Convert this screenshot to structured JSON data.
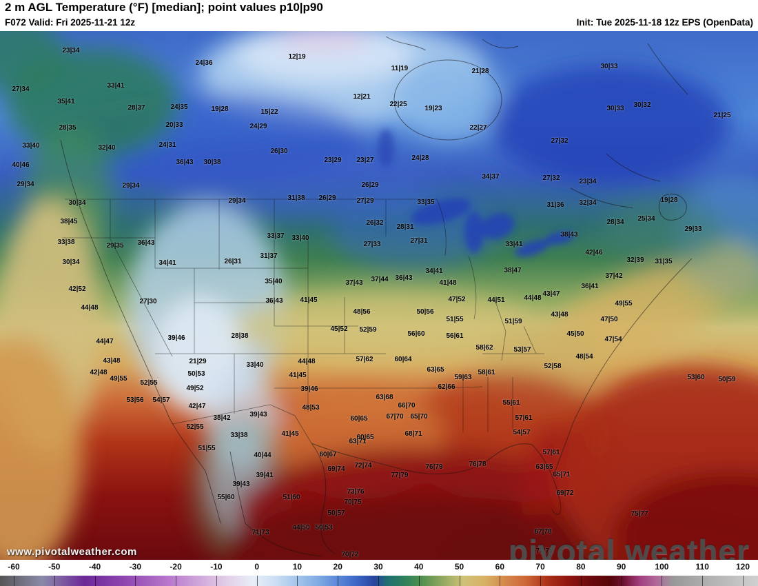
{
  "header": {
    "title": "2 m AGL Temperature (°F) [median]; point values p10|p90",
    "run_info": "F072 Valid: Fri 2025-11-21 12z",
    "init_info": "Init: Tue 2025-11-18 12z EPS (OpenData)"
  },
  "watermarks": {
    "url": "www.pivotalweather.com",
    "brand": "pivotal weather"
  },
  "colorbar": {
    "ticks": [
      -60,
      -50,
      -40,
      -30,
      -20,
      -10,
      0,
      10,
      20,
      30,
      40,
      50,
      60,
      70,
      80,
      90,
      100,
      110,
      120
    ],
    "stops": [
      [
        -60,
        "#555555"
      ],
      [
        -50,
        "#8a8aa8"
      ],
      [
        -40,
        "#6c2898"
      ],
      [
        -30,
        "#9048b0"
      ],
      [
        -20,
        "#b878cc"
      ],
      [
        -10,
        "#d8b8e0"
      ],
      [
        -5,
        "#e4d4ea"
      ],
      [
        0,
        "#e8eef8"
      ],
      [
        5,
        "#cfe0f4"
      ],
      [
        10,
        "#a8c8ec"
      ],
      [
        15,
        "#84aee4"
      ],
      [
        20,
        "#5c8ad8"
      ],
      [
        25,
        "#3a63c4"
      ],
      [
        29,
        "#27449c"
      ],
      [
        32,
        "#1f6f72"
      ],
      [
        36,
        "#2e7f5c"
      ],
      [
        40,
        "#4f8f4f"
      ],
      [
        45,
        "#8fa85f"
      ],
      [
        50,
        "#cfc178"
      ],
      [
        55,
        "#d8b266"
      ],
      [
        60,
        "#d4884a"
      ],
      [
        65,
        "#cc6636"
      ],
      [
        70,
        "#ab3018"
      ],
      [
        75,
        "#8f1410"
      ],
      [
        80,
        "#6c0a0e"
      ],
      [
        85,
        "#56060a"
      ],
      [
        88,
        "#6e1030"
      ],
      [
        92,
        "#a04080"
      ],
      [
        96,
        "#b0699a"
      ],
      [
        100,
        "#999999"
      ],
      [
        110,
        "#b5b5b5"
      ],
      [
        120,
        "#d0d0d0"
      ]
    ]
  },
  "chart_data": {
    "type": "heatmap",
    "title": "2 m AGL Temperature (°F) [median]; point values p10|p90",
    "units": "°F",
    "value_range": [
      -60,
      120
    ],
    "points_format": "[\"p10|p90\", x_px, y_px]",
    "points": [
      [
        "23|34",
        103,
        74
      ],
      [
        "12|19",
        431,
        83
      ],
      [
        "24|36",
        296,
        92
      ],
      [
        "30|33",
        884,
        97
      ],
      [
        "11|19",
        580,
        100
      ],
      [
        "21|28",
        697,
        104
      ],
      [
        "33|41",
        168,
        125
      ],
      [
        "27|34",
        30,
        130
      ],
      [
        "12|21",
        525,
        141
      ],
      [
        "35|41",
        96,
        148
      ],
      [
        "22|25",
        578,
        152
      ],
      [
        "30|32",
        932,
        153
      ],
      [
        "28|37",
        198,
        157
      ],
      [
        "24|35",
        260,
        156
      ],
      [
        "30|33",
        893,
        158
      ],
      [
        "19|28",
        319,
        159
      ],
      [
        "19|23",
        629,
        158
      ],
      [
        "15|22",
        391,
        163
      ],
      [
        "21|25",
        1048,
        168
      ],
      [
        "20|33",
        253,
        182
      ],
      [
        "24|29",
        375,
        184
      ],
      [
        "28|35",
        98,
        186
      ],
      [
        "22|27",
        694,
        186
      ],
      [
        "27|32",
        812,
        205
      ],
      [
        "24|31",
        243,
        211
      ],
      [
        "33|40",
        45,
        212
      ],
      [
        "32|40",
        155,
        215
      ],
      [
        "26|30",
        405,
        220
      ],
      [
        "24|28",
        610,
        230
      ],
      [
        "23|29",
        483,
        233
      ],
      [
        "23|27",
        530,
        233
      ],
      [
        "36|43",
        268,
        236
      ],
      [
        "30|38",
        308,
        236
      ],
      [
        "40|46",
        30,
        240
      ],
      [
        "34|37",
        712,
        257
      ],
      [
        "27|32",
        800,
        259
      ],
      [
        "23|34",
        853,
        264
      ],
      [
        "29|34",
        37,
        268
      ],
      [
        "29|34",
        190,
        270
      ],
      [
        "26|29",
        537,
        269
      ],
      [
        "26|29",
        475,
        288
      ],
      [
        "31|38",
        430,
        288
      ],
      [
        "27|29",
        530,
        292
      ],
      [
        "19|28",
        971,
        291
      ],
      [
        "29|34",
        344,
        292
      ],
      [
        "33|35",
        618,
        294
      ],
      [
        "30|34",
        112,
        295
      ],
      [
        "31|36",
        806,
        298
      ],
      [
        "32|34",
        853,
        295
      ],
      [
        "38|45",
        100,
        322
      ],
      [
        "26|32",
        544,
        324
      ],
      [
        "28|34",
        893,
        323
      ],
      [
        "25|34",
        938,
        318
      ],
      [
        "28|31",
        588,
        330
      ],
      [
        "29|33",
        1006,
        333
      ],
      [
        "33|38",
        96,
        352
      ],
      [
        "29|35",
        167,
        357
      ],
      [
        "36|43",
        212,
        353
      ],
      [
        "33|37",
        400,
        343
      ],
      [
        "33|40",
        436,
        346
      ],
      [
        "27|31",
        608,
        350
      ],
      [
        "27|33",
        540,
        355
      ],
      [
        "33|41",
        746,
        355
      ],
      [
        "38|43",
        826,
        341
      ],
      [
        "31|37",
        390,
        372
      ],
      [
        "26|31",
        338,
        380
      ],
      [
        "30|34",
        103,
        381
      ],
      [
        "34|41",
        243,
        382
      ],
      [
        "42|46",
        862,
        367
      ],
      [
        "32|39",
        922,
        378
      ],
      [
        "31|35",
        963,
        380
      ],
      [
        "34|41",
        630,
        394
      ],
      [
        "38|47",
        744,
        393
      ],
      [
        "37|42",
        891,
        401
      ],
      [
        "36|43",
        586,
        404
      ],
      [
        "37|44",
        551,
        406
      ],
      [
        "35|40",
        397,
        409
      ],
      [
        "37|43",
        514,
        411
      ],
      [
        "41|48",
        650,
        411
      ],
      [
        "36|41",
        856,
        416
      ],
      [
        "42|52",
        112,
        420
      ],
      [
        "43|47",
        800,
        427
      ],
      [
        "41|45",
        448,
        436
      ],
      [
        "36|43",
        398,
        437
      ],
      [
        "47|52",
        663,
        435
      ],
      [
        "44|51",
        720,
        436
      ],
      [
        "44|48",
        773,
        433
      ],
      [
        "27|30",
        215,
        438
      ],
      [
        "49|55",
        905,
        441
      ],
      [
        "44|48",
        130,
        447
      ],
      [
        "48|56",
        525,
        453
      ],
      [
        "50|56",
        617,
        453
      ],
      [
        "43|48",
        812,
        457
      ],
      [
        "51|55",
        660,
        464
      ],
      [
        "47|50",
        884,
        464
      ],
      [
        "51|59",
        745,
        467
      ],
      [
        "45|52",
        492,
        478
      ],
      [
        "52|59",
        534,
        479
      ],
      [
        "56|60",
        604,
        485
      ],
      [
        "56|61",
        660,
        488
      ],
      [
        "45|50",
        835,
        485
      ],
      [
        "39|46",
        256,
        491
      ],
      [
        "28|38",
        348,
        488
      ],
      [
        "44|47",
        152,
        496
      ],
      [
        "47|54",
        890,
        493
      ],
      [
        "58|62",
        703,
        505
      ],
      [
        "53|57",
        758,
        508
      ],
      [
        "48|54",
        848,
        518
      ],
      [
        "57|62",
        529,
        522
      ],
      [
        "60|64",
        585,
        522
      ],
      [
        "21|29",
        287,
        525
      ],
      [
        "43|48",
        162,
        524
      ],
      [
        "44|48",
        445,
        525
      ],
      [
        "33|40",
        370,
        530
      ],
      [
        "52|58",
        802,
        532
      ],
      [
        "63|65",
        632,
        537
      ],
      [
        "58|61",
        706,
        541
      ],
      [
        "42|48",
        143,
        541
      ],
      [
        "50|53",
        285,
        543
      ],
      [
        "41|45",
        432,
        545
      ],
      [
        "59|63",
        672,
        548
      ],
      [
        "53|60",
        1010,
        548
      ],
      [
        "50|59",
        1055,
        551
      ],
      [
        "49|55",
        172,
        550
      ],
      [
        "52|55",
        216,
        556
      ],
      [
        "62|66",
        648,
        562
      ],
      [
        "39|46",
        449,
        565
      ],
      [
        "49|52",
        283,
        564
      ],
      [
        "63|68",
        558,
        577
      ],
      [
        "53|56",
        196,
        581
      ],
      [
        "54|57",
        234,
        581
      ],
      [
        "55|61",
        742,
        585
      ],
      [
        "42|47",
        286,
        590
      ],
      [
        "66|70",
        590,
        589
      ],
      [
        "48|53",
        451,
        592
      ],
      [
        "39|43",
        375,
        602
      ],
      [
        "60|65",
        521,
        608
      ],
      [
        "67|70",
        573,
        605
      ],
      [
        "65|70",
        608,
        605
      ],
      [
        "57|61",
        760,
        607
      ],
      [
        "38|42",
        322,
        607
      ],
      [
        "52|55",
        283,
        620
      ],
      [
        "41|45",
        421,
        630
      ],
      [
        "68|71",
        600,
        630
      ],
      [
        "60|65",
        530,
        635
      ],
      [
        "33|38",
        347,
        632
      ],
      [
        "54|57",
        757,
        628
      ],
      [
        "63|71",
        519,
        641
      ],
      [
        "51|55",
        300,
        651
      ],
      [
        "57|61",
        800,
        657
      ],
      [
        "40|44",
        381,
        661
      ],
      [
        "60|67",
        476,
        660
      ],
      [
        "76|79",
        630,
        678
      ],
      [
        "77|79",
        580,
        690
      ],
      [
        "72|74",
        527,
        676
      ],
      [
        "69|74",
        488,
        681
      ],
      [
        "76|78",
        693,
        674
      ],
      [
        "63|65",
        790,
        678
      ],
      [
        "39|41",
        384,
        690
      ],
      [
        "65|71",
        815,
        689
      ],
      [
        "39|43",
        350,
        703
      ],
      [
        "73|76",
        516,
        714
      ],
      [
        "69|72",
        820,
        716
      ],
      [
        "51|60",
        423,
        722
      ],
      [
        "55|60",
        328,
        722
      ],
      [
        "70|75",
        512,
        729
      ],
      [
        "50|57",
        488,
        745
      ],
      [
        "75|77",
        928,
        746
      ],
      [
        "71|73",
        378,
        773
      ],
      [
        "67|78",
        788,
        772
      ],
      [
        "44|50",
        437,
        766
      ],
      [
        "50|53",
        470,
        766
      ],
      [
        "76|78",
        790,
        800
      ],
      [
        "70|72",
        508,
        805
      ]
    ]
  }
}
